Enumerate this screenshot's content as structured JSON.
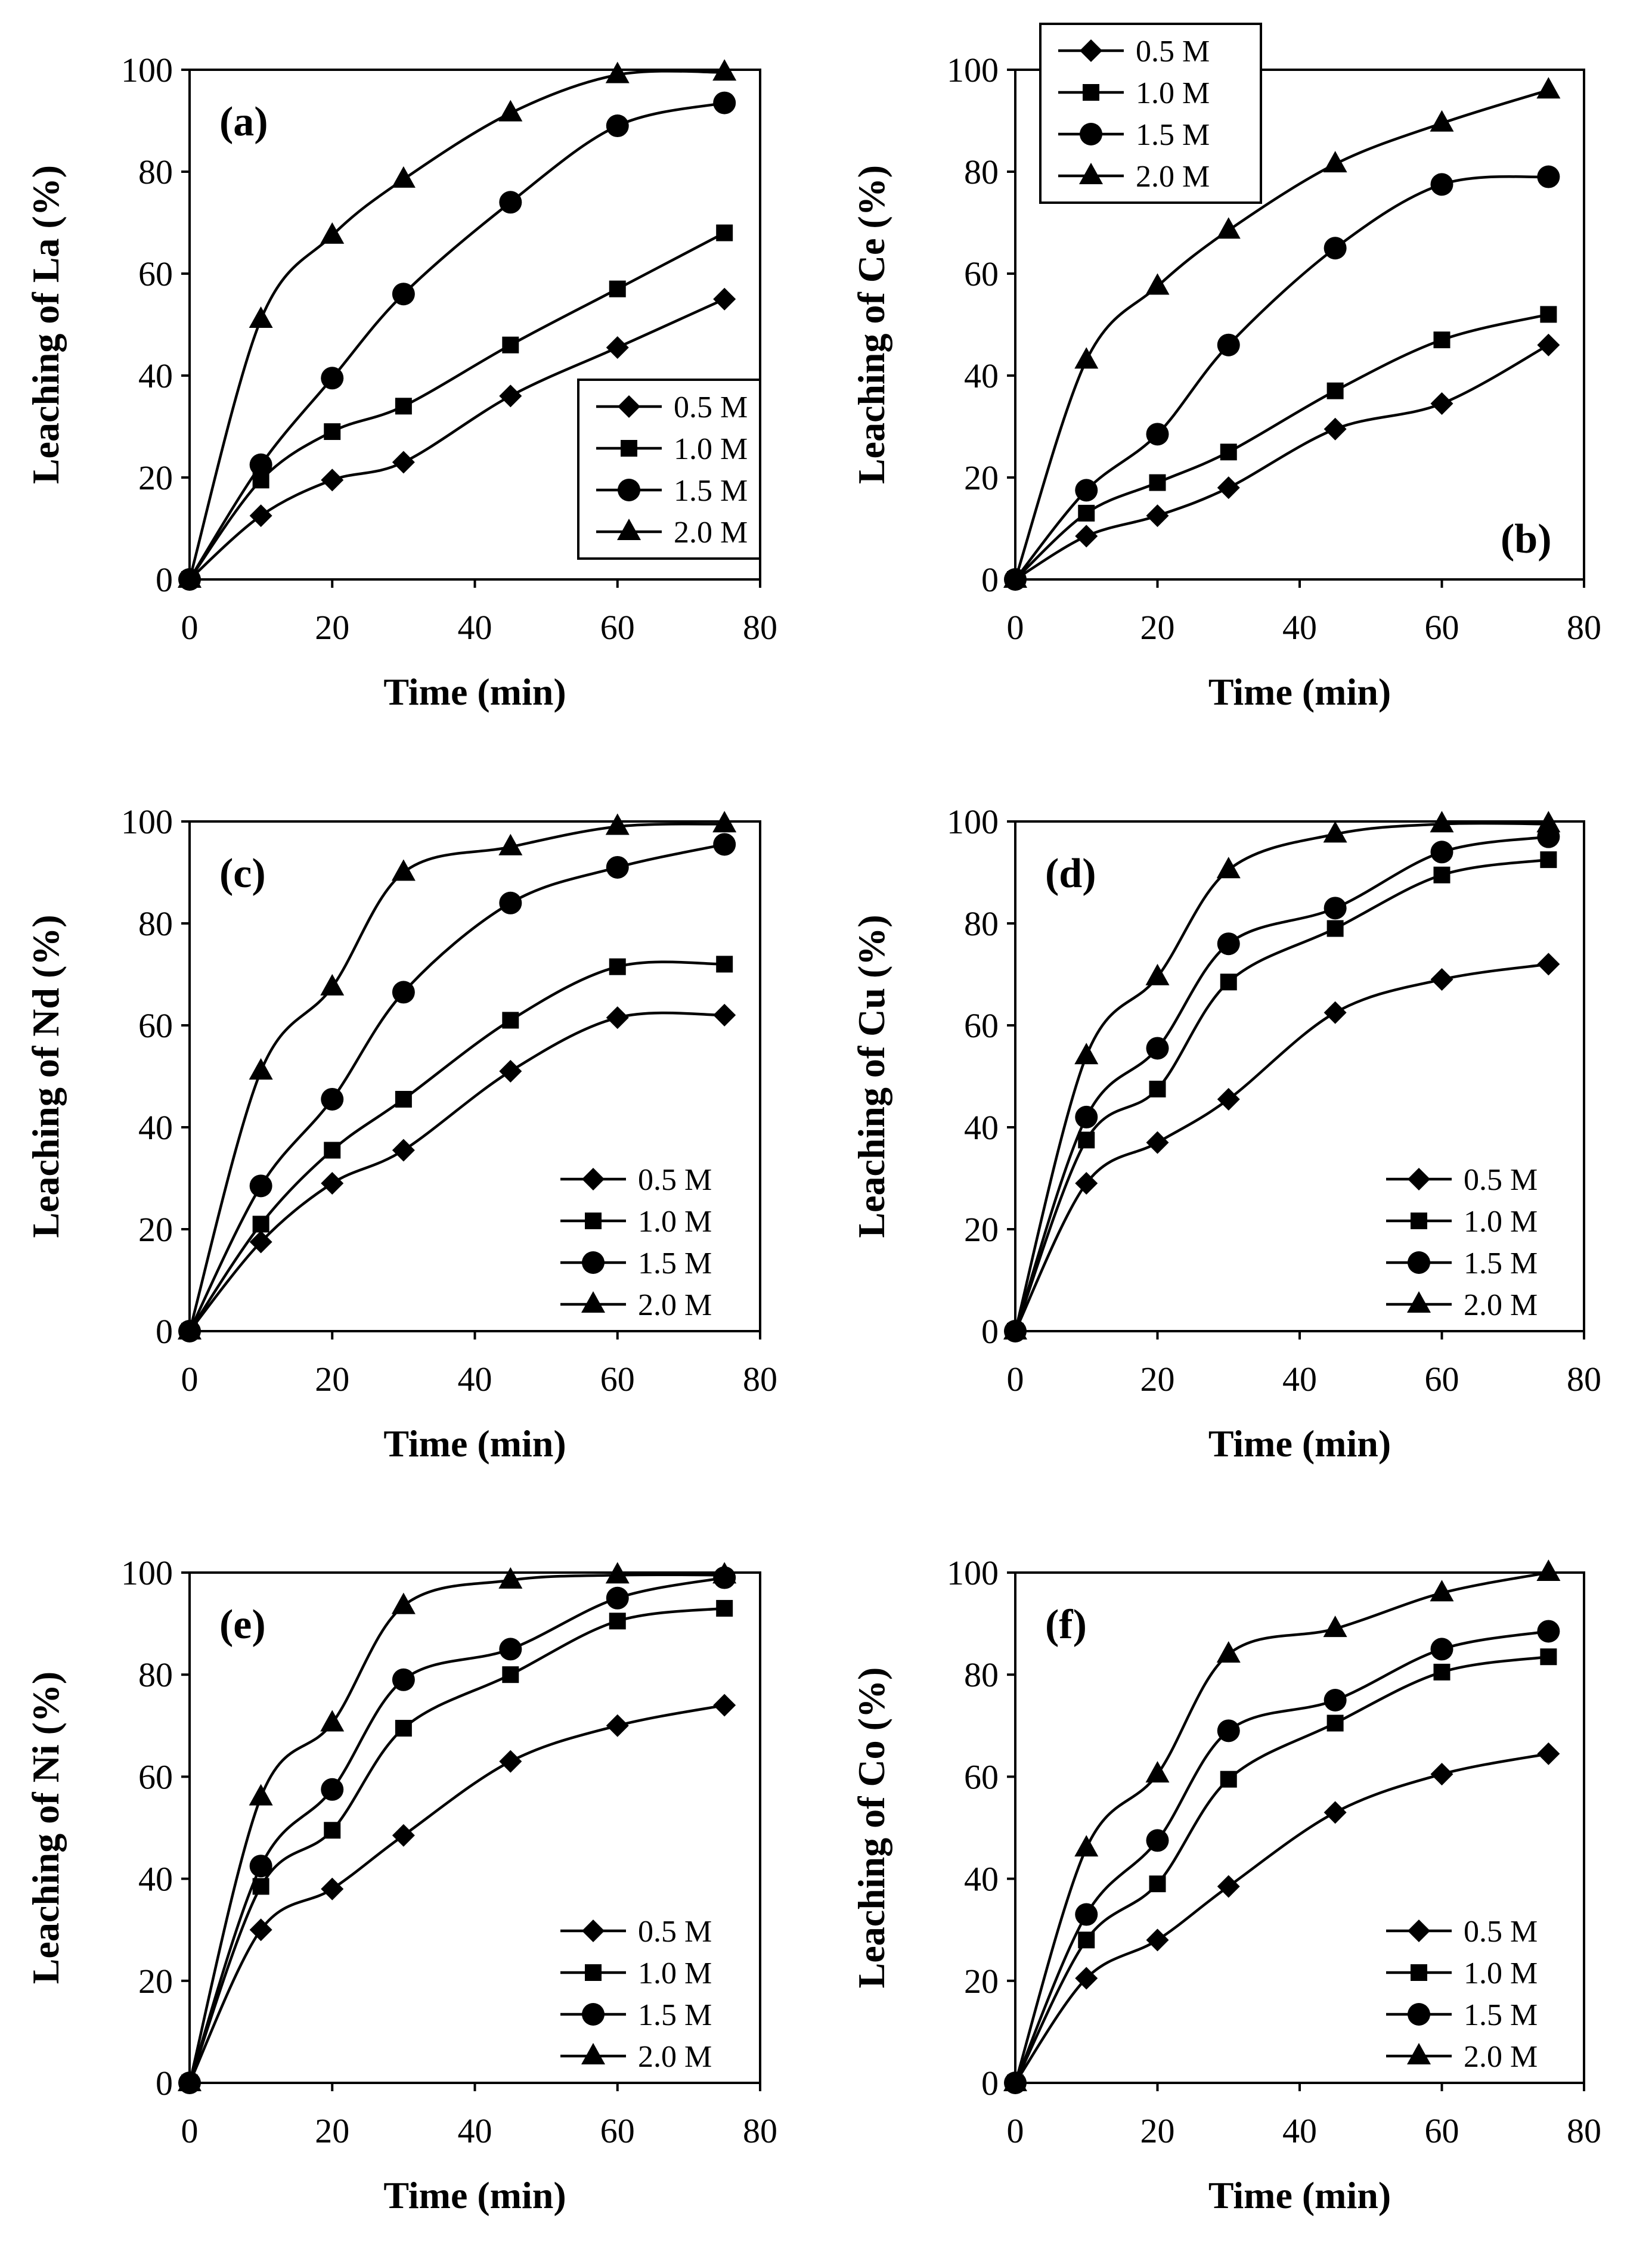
{
  "figure": {
    "x_title": "Time (min)",
    "x_ticks": [
      "0",
      "20",
      "40",
      "60",
      "80"
    ],
    "y_ticks": [
      "0",
      "20",
      "40",
      "60",
      "80",
      "100"
    ],
    "series_names": [
      "0.5 M",
      "1.0 M",
      "1.5 M",
      "2.0 M"
    ],
    "colors": {
      "line": "#000000",
      "marker": "#000000",
      "background": "#ffffff"
    }
  },
  "chart_data": [
    {
      "type": "line",
      "panel": "(a)",
      "element": "La",
      "ylabel": "Leaching of La (%)",
      "xlabel": "Time (min)",
      "xlim": [
        0,
        80
      ],
      "ylim": [
        0,
        100
      ],
      "legend": "right-middle",
      "x": [
        0,
        10,
        20,
        30,
        45,
        60,
        75
      ],
      "series": [
        {
          "name": "0.5 M",
          "marker": "diamond",
          "values": [
            0,
            12.5,
            19.5,
            23,
            36,
            45.5,
            55
          ]
        },
        {
          "name": "1.0 M",
          "marker": "square",
          "values": [
            0,
            19.5,
            29,
            34,
            46,
            57,
            68
          ]
        },
        {
          "name": "1.5 M",
          "marker": "circle",
          "values": [
            0,
            22.5,
            39.5,
            56,
            74,
            89,
            93.5
          ]
        },
        {
          "name": "2.0 M",
          "marker": "triangle",
          "values": [
            0,
            51,
            67.5,
            78.5,
            91.5,
            99,
            99.5
          ]
        }
      ]
    },
    {
      "type": "line",
      "panel": "(b)",
      "element": "Ce",
      "ylabel": "Leaching of Ce (%)",
      "xlabel": "Time (min)",
      "xlim": [
        0,
        80
      ],
      "ylim": [
        0,
        100
      ],
      "legend": "top-left",
      "x": [
        0,
        10,
        20,
        30,
        45,
        60,
        75
      ],
      "series": [
        {
          "name": "0.5 M",
          "marker": "diamond",
          "values": [
            0,
            8.5,
            12.5,
            18,
            29.5,
            34.5,
            46
          ]
        },
        {
          "name": "1.0 M",
          "marker": "square",
          "values": [
            0,
            13,
            19,
            25,
            37,
            47,
            52
          ]
        },
        {
          "name": "1.5 M",
          "marker": "circle",
          "values": [
            0,
            17.5,
            28.5,
            46,
            65,
            77.5,
            79
          ]
        },
        {
          "name": "2.0 M",
          "marker": "triangle",
          "values": [
            0,
            43,
            57.5,
            68.5,
            81.5,
            89.5,
            96
          ]
        }
      ]
    },
    {
      "type": "line",
      "panel": "(c)",
      "element": "Nd",
      "ylabel": "Leaching of Nd (%)",
      "xlabel": "Time (min)",
      "xlim": [
        0,
        80
      ],
      "ylim": [
        0,
        100
      ],
      "legend": "bottom-right",
      "x": [
        0,
        10,
        20,
        30,
        45,
        60,
        75
      ],
      "series": [
        {
          "name": "0.5 M",
          "marker": "diamond",
          "values": [
            0,
            17.5,
            29,
            35.5,
            51,
            61.5,
            62
          ]
        },
        {
          "name": "1.0 M",
          "marker": "square",
          "values": [
            0,
            21,
            35.5,
            45.5,
            61,
            71.5,
            72
          ]
        },
        {
          "name": "1.5 M",
          "marker": "circle",
          "values": [
            0,
            28.5,
            45.5,
            66.5,
            84,
            91,
            95.5
          ]
        },
        {
          "name": "2.0 M",
          "marker": "triangle",
          "values": [
            0,
            51,
            67.5,
            90,
            95,
            99,
            99.5
          ]
        }
      ]
    },
    {
      "type": "line",
      "panel": "(d)",
      "element": "Cu",
      "ylabel": "Leaching of Cu (%)",
      "xlabel": "Time (min)",
      "xlim": [
        0,
        80
      ],
      "ylim": [
        0,
        100
      ],
      "legend": "bottom-right",
      "x": [
        0,
        10,
        20,
        30,
        45,
        60,
        75
      ],
      "series": [
        {
          "name": "0.5 M",
          "marker": "diamond",
          "values": [
            0,
            29,
            37,
            45.5,
            62.5,
            69,
            72
          ]
        },
        {
          "name": "1.0 M",
          "marker": "square",
          "values": [
            0,
            37.5,
            47.5,
            68.5,
            79,
            89.5,
            92.5
          ]
        },
        {
          "name": "1.5 M",
          "marker": "circle",
          "values": [
            0,
            42,
            55.5,
            76,
            83,
            94,
            97
          ]
        },
        {
          "name": "2.0 M",
          "marker": "triangle",
          "values": [
            0,
            54,
            69.5,
            90.5,
            97.5,
            99.5,
            99.5
          ]
        }
      ]
    },
    {
      "type": "line",
      "panel": "(e)",
      "element": "Ni",
      "ylabel": "Leaching of Ni (%)",
      "xlabel": "Time (min)",
      "xlim": [
        0,
        80
      ],
      "ylim": [
        0,
        100
      ],
      "legend": "bottom-right",
      "x": [
        0,
        10,
        20,
        30,
        45,
        60,
        75
      ],
      "series": [
        {
          "name": "0.5 M",
          "marker": "diamond",
          "values": [
            0,
            30,
            38,
            48.5,
            63,
            70,
            74
          ]
        },
        {
          "name": "1.0 M",
          "marker": "square",
          "values": [
            0,
            38.5,
            49.5,
            69.5,
            80,
            90.5,
            93
          ]
        },
        {
          "name": "1.5 M",
          "marker": "circle",
          "values": [
            0,
            42.5,
            57.5,
            79,
            85,
            95,
            99
          ]
        },
        {
          "name": "2.0 M",
          "marker": "triangle",
          "values": [
            0,
            56,
            70.5,
            93.5,
            98.5,
            99.5,
            99.5
          ]
        }
      ]
    },
    {
      "type": "line",
      "panel": "(f)",
      "element": "Co",
      "ylabel": "Leaching of Co (%)",
      "xlabel": "Time (min)",
      "xlim": [
        0,
        80
      ],
      "ylim": [
        0,
        100
      ],
      "legend": "bottom-right",
      "x": [
        0,
        10,
        20,
        30,
        45,
        60,
        75
      ],
      "series": [
        {
          "name": "0.5 M",
          "marker": "diamond",
          "values": [
            0,
            20.5,
            28,
            38.5,
            53,
            60.5,
            64.5
          ]
        },
        {
          "name": "1.0 M",
          "marker": "square",
          "values": [
            0,
            28,
            39,
            59.5,
            70.5,
            80.5,
            83.5
          ]
        },
        {
          "name": "1.5 M",
          "marker": "circle",
          "values": [
            0,
            33,
            47.5,
            69,
            75,
            85,
            88.5
          ]
        },
        {
          "name": "2.0 M",
          "marker": "triangle",
          "values": [
            0,
            46,
            60.5,
            84,
            89,
            96,
            100
          ]
        }
      ]
    }
  ]
}
